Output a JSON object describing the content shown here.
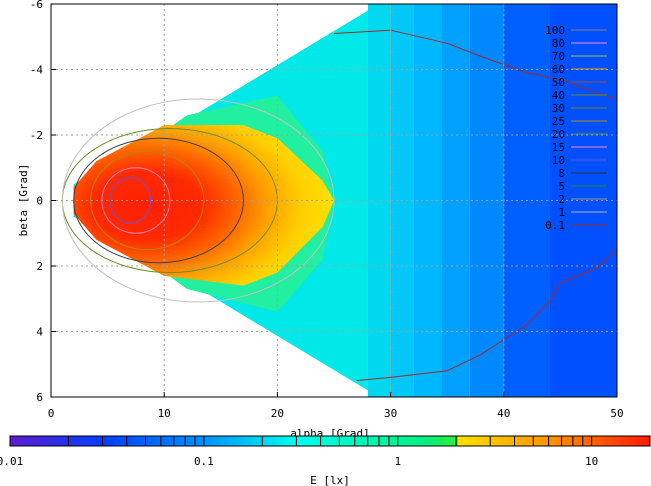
{
  "chart_data": {
    "type": "heatmap",
    "xlabel": "alpha [Grad]",
    "ylabel": "beta [Grad]",
    "colorbar_label": "E [lx]",
    "x_range": [
      0,
      50
    ],
    "y_range": [
      6,
      -6
    ],
    "x_ticks": [
      "0",
      "10",
      "20",
      "30",
      "40",
      "50"
    ],
    "y_ticks": [
      "-6",
      "-4",
      "-2",
      "0",
      "2",
      "4",
      "6"
    ],
    "colorbar_scale": "log",
    "colorbar_range": [
      0.01,
      20
    ],
    "colorbar_ticks": [
      "0.01",
      "0.1",
      "1",
      "10"
    ],
    "colorbar_minor_ticks": [
      0.02,
      0.03,
      0.04,
      0.05,
      0.06,
      0.07,
      0.08,
      0.09,
      0.2,
      0.3,
      0.4,
      0.5,
      0.6,
      0.7,
      0.8,
      0.9,
      2,
      3,
      4,
      5,
      6,
      7,
      8,
      9,
      20
    ],
    "grid": true,
    "legend_position": "top-right",
    "contour_levels": [
      {
        "label": "100",
        "color": "#808080"
      },
      {
        "label": "80",
        "color": "#ff80ff"
      },
      {
        "label": "70",
        "color": "#9acd32"
      },
      {
        "label": "60",
        "color": "#f0a000"
      },
      {
        "label": "50",
        "color": "#a0522d"
      },
      {
        "label": "40",
        "color": "#6b8e23"
      },
      {
        "label": "30",
        "color": "#808000"
      },
      {
        "label": "25",
        "color": "#b8860b"
      },
      {
        "label": "20",
        "color": "#6b8e23"
      },
      {
        "label": "15",
        "color": "#ff80c0"
      },
      {
        "label": "10",
        "color": "#6a5acd"
      },
      {
        "label": "8",
        "color": "#303030"
      },
      {
        "label": "5",
        "color": "#228b22"
      },
      {
        "label": "2",
        "color": "#909090"
      },
      {
        "label": "1",
        "color": "#b0b0b0"
      },
      {
        "label": "0.1",
        "color": "#a52a2a"
      }
    ],
    "colors": {
      "red": "#ff2000",
      "orange": "#ff7a00",
      "yellow": "#ffe000",
      "green": "#33ee33",
      "cyan": "#00ffee",
      "blue": "#0040ff",
      "violet": "#5c1cd0"
    }
  }
}
